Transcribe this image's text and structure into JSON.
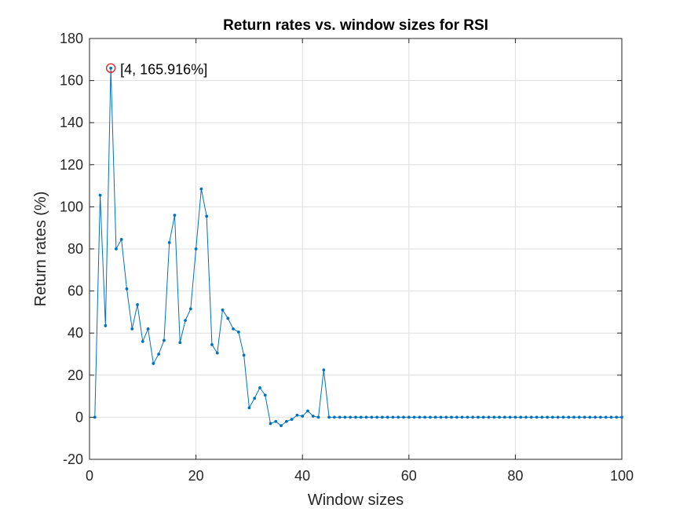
{
  "chart_data": {
    "type": "line",
    "title": "Return rates vs. window sizes for RSI",
    "xlabel": "Window sizes",
    "ylabel": "Return rates (%)",
    "xlim": [
      0,
      100
    ],
    "ylim": [
      -20,
      180
    ],
    "xticks": [
      0,
      20,
      40,
      60,
      80,
      100
    ],
    "yticks": [
      -20,
      0,
      20,
      40,
      60,
      80,
      100,
      120,
      140,
      160,
      180
    ],
    "grid": true,
    "series_color": "#0072BD",
    "highlight_color": "#E6191B",
    "annotation": {
      "x": 4,
      "y": 165.916,
      "text": "[4, 165.916%]"
    },
    "series": [
      {
        "name": "Return rates",
        "x": [
          1,
          2,
          3,
          4,
          5,
          6,
          7,
          8,
          9,
          10,
          11,
          12,
          13,
          14,
          15,
          16,
          17,
          18,
          19,
          20,
          21,
          22,
          23,
          24,
          25,
          26,
          27,
          28,
          29,
          30,
          31,
          32,
          33,
          34,
          35,
          36,
          37,
          38,
          39,
          40,
          41,
          42,
          43,
          44,
          45,
          46,
          47,
          48,
          49,
          50,
          51,
          52,
          53,
          54,
          55,
          56,
          57,
          58,
          59,
          60,
          61,
          62,
          63,
          64,
          65,
          66,
          67,
          68,
          69,
          70,
          71,
          72,
          73,
          74,
          75,
          76,
          77,
          78,
          79,
          80,
          81,
          82,
          83,
          84,
          85,
          86,
          87,
          88,
          89,
          90,
          91,
          92,
          93,
          94,
          95,
          96,
          97,
          98,
          99,
          100
        ],
        "values": [
          0,
          105.5,
          43.5,
          165.916,
          80,
          84.5,
          61,
          42,
          53.5,
          36,
          42,
          25.5,
          30,
          36.5,
          83,
          96,
          35.5,
          46,
          51.5,
          80,
          108.5,
          95.5,
          34.5,
          30.5,
          51,
          47,
          42,
          40.5,
          29.5,
          4.5,
          9,
          14,
          10.5,
          -3,
          -2,
          -4,
          -2,
          -1,
          1,
          0.5,
          3,
          0.5,
          0,
          22.5,
          0,
          0,
          0,
          0,
          0,
          0,
          0,
          0,
          0,
          0,
          0,
          0,
          0,
          0,
          0,
          0,
          0,
          0,
          0,
          0,
          0,
          0,
          0,
          0,
          0,
          0,
          0,
          0,
          0,
          0,
          0,
          0,
          0,
          0,
          0,
          0,
          0,
          0,
          0,
          0,
          0,
          0,
          0,
          0,
          0,
          0,
          0,
          0,
          0,
          0,
          0,
          0,
          0,
          0,
          0,
          0
        ]
      }
    ]
  }
}
